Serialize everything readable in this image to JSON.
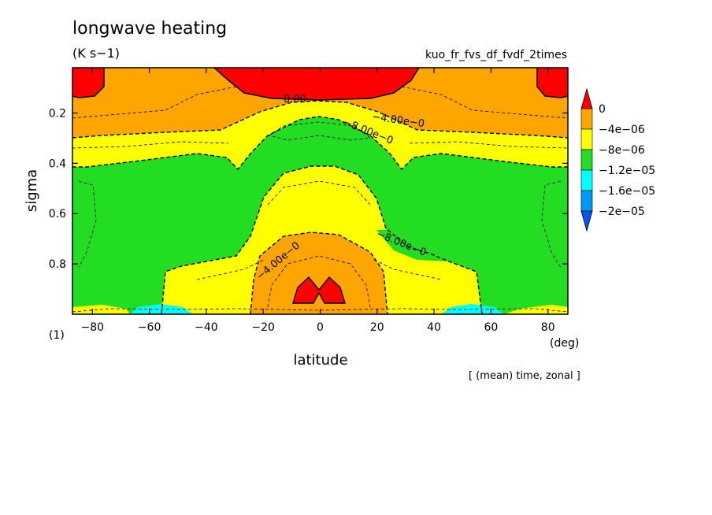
{
  "header": {
    "title": "longwave heating",
    "units": "(K s−1)",
    "run_name": "kuo_fr_fvs_df_fvdf_2times",
    "axis_marker": "(1)",
    "footnote": "[ (mean) time, zonal ]"
  },
  "chart_data": {
    "type": "heatmap",
    "xlabel": "latitude",
    "xunit": "(deg)",
    "ylabel": "sigma",
    "xlim": [
      -87,
      87
    ],
    "ylim": [
      1.0,
      0.02
    ],
    "y_inverted": true,
    "x_ticks": [
      -80,
      -60,
      -40,
      -20,
      0,
      20,
      40,
      60,
      80
    ],
    "x_tick_labels": [
      "−80",
      "−60",
      "−40",
      "−20",
      "0",
      "20",
      "40",
      "60",
      "80"
    ],
    "y_ticks": [
      0.2,
      0.4,
      0.6,
      0.8
    ],
    "y_tick_labels": [
      "0.2",
      "0.4",
      "0.6",
      "0.8"
    ],
    "colorbar": {
      "labels": [
        "0",
        "−4e−06",
        "−8e−06",
        "−1.2e−05",
        "−1.6e−05",
        "−2e−05"
      ],
      "colors": [
        "#ff0000",
        "#ffa500",
        "#ffff00",
        "#22dd22",
        "#00ffff",
        "#0099ff",
        "#0055ff"
      ]
    },
    "contour_labels": [
      "0.00",
      "−4.00e−0",
      "−8.00e−0",
      "−8.00e−0",
      "−4.00e−0"
    ],
    "grid": false
  }
}
